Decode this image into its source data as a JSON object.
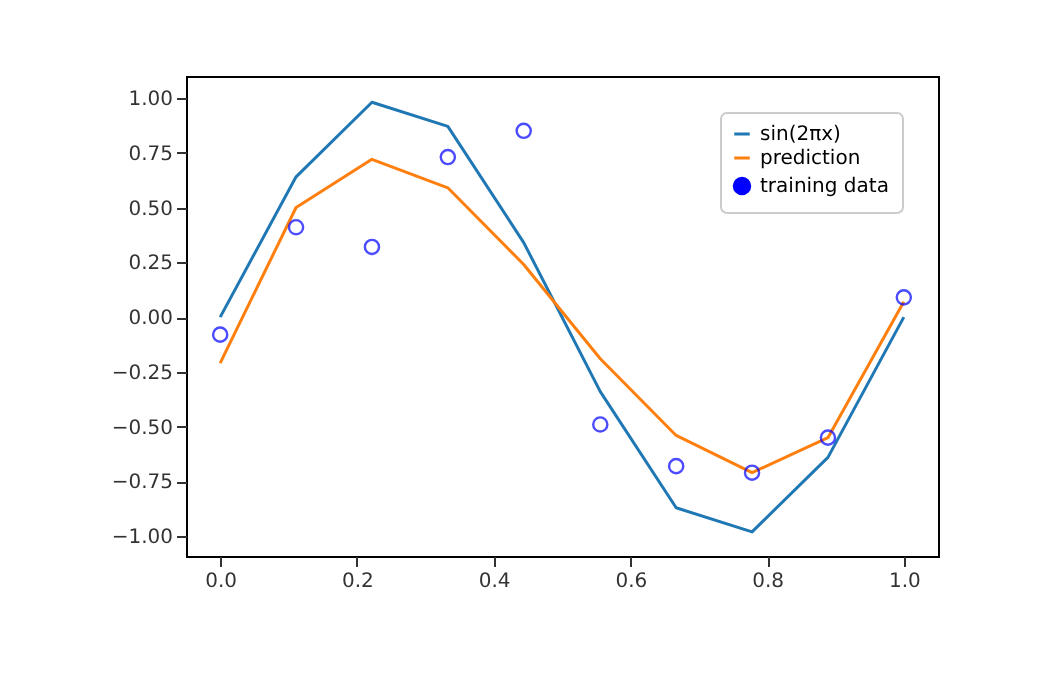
{
  "chart_data": {
    "type": "line",
    "x": [
      0,
      0.111,
      0.222,
      0.333,
      0.444,
      0.556,
      0.667,
      0.778,
      0.889,
      1
    ],
    "series": [
      {
        "name": "sin(2πx)",
        "color": "#1f77b4",
        "values": [
          0,
          0.64,
          0.98,
          0.87,
          0.34,
          -0.34,
          -0.87,
          -0.98,
          -0.64,
          0
        ]
      },
      {
        "name": "prediction",
        "color": "#ff7f0e",
        "values": [
          -0.21,
          0.5,
          0.72,
          0.59,
          0.24,
          -0.19,
          -0.54,
          -0.71,
          -0.55,
          0.07
        ]
      },
      {
        "name": "training data",
        "color": "#0000ff",
        "type": "scatter",
        "marker": "circle",
        "values": [
          -0.08,
          0.41,
          0.32,
          0.73,
          0.85,
          -0.49,
          -0.68,
          -0.71,
          -0.55,
          0.09
        ]
      }
    ],
    "xlim": [
      -0.05,
      1.05
    ],
    "xticks": [
      {
        "value": 0,
        "label": "0.0"
      },
      0.2,
      0.4,
      0.6,
      0.8,
      {
        "value": 1,
        "label": "1.0"
      }
    ],
    "ylim": [
      -1.09,
      1.1
    ],
    "yticks": [
      {
        "value": -1,
        "label": "−1.00"
      },
      -0.75,
      {
        "value": -0.5,
        "label": "−0.50"
      },
      -0.25,
      {
        "value": 0,
        "label": "0.00"
      },
      0.25,
      {
        "value": 0.5,
        "label": "0.50"
      },
      0.75,
      {
        "value": 1,
        "label": "1.00"
      }
    ],
    "grid": false,
    "legend": "top right"
  }
}
